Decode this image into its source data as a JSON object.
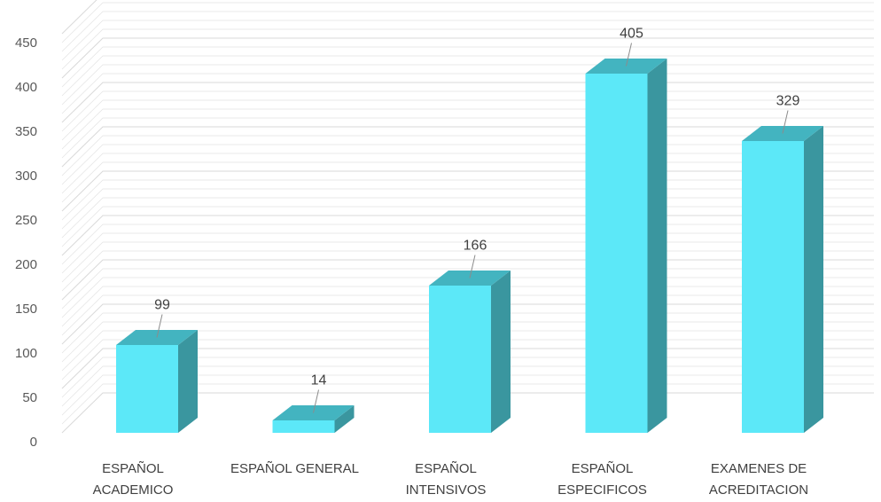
{
  "chart_data": {
    "type": "bar",
    "categories": [
      [
        "ESPAÑOL",
        "ACADEMICO"
      ],
      [
        "ESPAÑOL GENERAL"
      ],
      [
        "ESPAÑOL",
        "INTENSIVOS"
      ],
      [
        "ESPAÑOL",
        "ESPECIFICOS"
      ],
      [
        "EXAMENES DE",
        "ACREDITACION"
      ]
    ],
    "values": [
      99,
      14,
      166,
      405,
      329
    ],
    "data_labels": [
      "99",
      "14",
      "166",
      "405",
      "329"
    ],
    "ylim": [
      0,
      450
    ],
    "yticks": [
      0,
      50,
      100,
      150,
      200,
      250,
      300,
      350,
      400,
      450
    ],
    "grid": true,
    "legend": "none",
    "bar_colors": {
      "front": "#5CE8F8",
      "top": "#43B4C0",
      "side": "#3A969F"
    },
    "grid_color": "#D9D9D9"
  }
}
